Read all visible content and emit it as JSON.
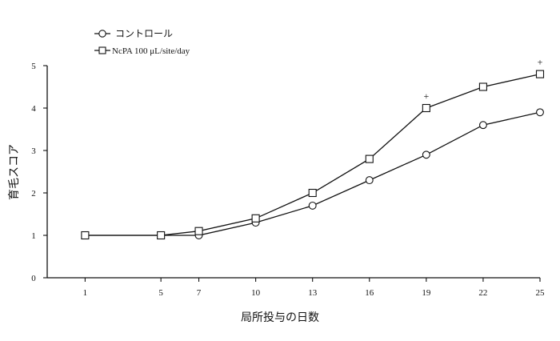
{
  "chart_data": {
    "type": "line",
    "xlabel": "局所投与の日数",
    "ylabel": "育毛スコア",
    "x": [
      1,
      5,
      7,
      10,
      13,
      16,
      19,
      22,
      25
    ],
    "x_tick_labels": [
      "1",
      "5",
      "7",
      "10",
      "13",
      "16",
      "19",
      "22",
      "25"
    ],
    "xlim": [
      -1,
      25
    ],
    "ylim": [
      0,
      5
    ],
    "y_ticks": [
      0,
      1,
      2,
      3,
      4,
      5
    ],
    "y_tick_labels": [
      "0",
      "1",
      "2",
      "3",
      "4",
      "5"
    ],
    "legend_position": "top-left",
    "grid": false,
    "series": [
      {
        "name": "コントロール",
        "marker": "circle",
        "values": [
          1.0,
          1.0,
          1.0,
          1.3,
          1.7,
          2.3,
          2.9,
          3.6,
          3.9
        ]
      },
      {
        "name": "NcPA 100 μL/site/day",
        "marker": "square",
        "values": [
          1.0,
          1.0,
          1.1,
          1.4,
          2.0,
          2.8,
          4.0,
          4.5,
          4.8
        ]
      }
    ],
    "annotations": [
      {
        "text": "+",
        "x": 19,
        "y": 4.0
      },
      {
        "text": "+",
        "x": 25,
        "y": 4.8
      }
    ]
  }
}
